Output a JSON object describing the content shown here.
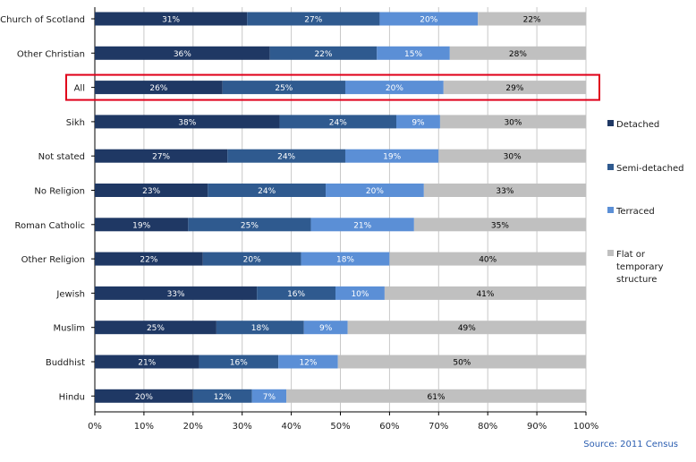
{
  "chart_data": {
    "type": "bar",
    "orientation": "horizontal",
    "stacked": "100%",
    "categories": [
      "Church of Scotland",
      "Other Christian",
      "All",
      "Sikh",
      "Not stated",
      "No Religion",
      "Roman Catholic",
      "Other Religion",
      "Jewish",
      "Muslim",
      "Buddhist",
      "Hindu"
    ],
    "highlighted_category": "All",
    "series": [
      {
        "name": "Detached",
        "color": "#1f3864",
        "values": [
          31,
          36,
          26,
          38,
          27,
          23,
          19,
          22,
          33,
          25,
          21,
          20
        ],
        "labels": [
          "31%",
          "36%",
          "26%",
          "38%",
          "27%",
          "23%",
          "19%",
          "22%",
          "33%",
          "25%",
          "21%",
          "20%"
        ]
      },
      {
        "name": "Semi-detached",
        "color": "#2f5a8f",
        "values": [
          27,
          22,
          25,
          24,
          24,
          24,
          25,
          20,
          16,
          18,
          16,
          12
        ],
        "labels": [
          "27%",
          "22%",
          "25%",
          "24%",
          "24%",
          "24%",
          "25%",
          "20%",
          "16%",
          "18%",
          "16%",
          "12%"
        ]
      },
      {
        "name": "Terraced",
        "color": "#5b8fd6",
        "values": [
          20,
          15,
          20,
          9,
          19,
          20,
          21,
          18,
          10,
          9,
          12,
          7
        ],
        "labels": [
          "20%",
          "15%",
          "20%",
          "9%",
          "19%",
          "20%",
          "21%",
          "18%",
          "10%",
          "9%",
          "12%",
          "7%"
        ]
      },
      {
        "name": "Flat or temporary structure",
        "legend_lines": [
          "Flat or",
          "temporary",
          "structure"
        ],
        "color": "#c0c0c0",
        "values": [
          22,
          28,
          29,
          30,
          30,
          33,
          35,
          40,
          41,
          49,
          50,
          61
        ],
        "labels": [
          "22%",
          "28%",
          "29%",
          "30%",
          "30%",
          "33%",
          "35%",
          "40%",
          "41%",
          "49%",
          "50%",
          "61%"
        ]
      }
    ],
    "xlim": [
      0,
      100
    ],
    "xticks": [
      "0%",
      "10%",
      "20%",
      "30%",
      "40%",
      "50%",
      "60%",
      "70%",
      "80%",
      "90%",
      "100%"
    ],
    "grid": true,
    "legend_position": "right",
    "source": "Source: 2011 Census",
    "highlight_color": "#e0001a"
  }
}
